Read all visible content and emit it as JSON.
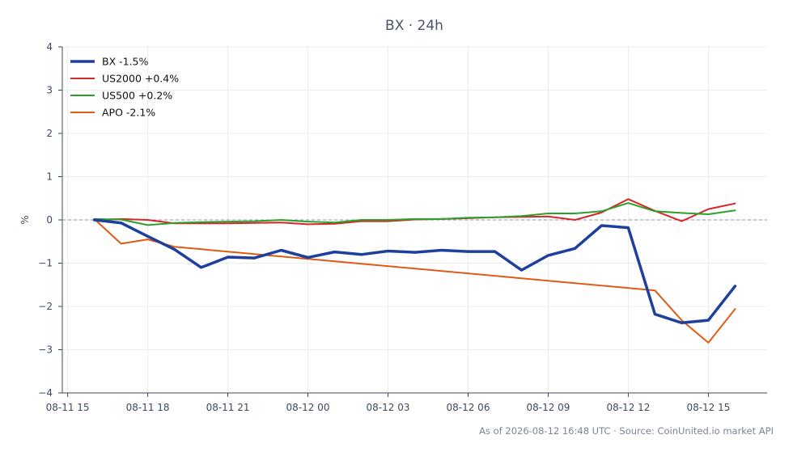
{
  "chart_data": {
    "type": "line",
    "title": "BX · 24h",
    "xlabel": "",
    "ylabel": "%",
    "x_ticks": [
      "08-11 15",
      "08-11 18",
      "08-11 21",
      "08-12 00",
      "08-12 03",
      "08-12 06",
      "08-12 09",
      "08-12 12",
      "08-12 15"
    ],
    "y_ticks": [
      4,
      3,
      2,
      1,
      0,
      -1,
      -2,
      -3,
      -4
    ],
    "ylim": [
      -4,
      4
    ],
    "grid": true,
    "legend_position": "top-left",
    "zero_line": true,
    "series": [
      {
        "name": "BX -1.5%",
        "color": "#1f3f9e",
        "width": "thick",
        "x": [
          16,
          17,
          18,
          19,
          20,
          21,
          22,
          23,
          24,
          25,
          26,
          27,
          28,
          29,
          30,
          31,
          32,
          33,
          34,
          35,
          36,
          37,
          38,
          39,
          40
        ],
        "values": [
          0.0,
          -0.07,
          -0.38,
          -0.68,
          -1.1,
          -0.86,
          -0.88,
          -0.7,
          -0.87,
          -0.74,
          -0.8,
          -0.72,
          -0.75,
          -0.7,
          -0.73,
          -0.73,
          -1.16,
          -0.82,
          -0.66,
          -0.13,
          -0.18,
          -2.18,
          -2.38,
          -2.32,
          -1.53
        ]
      },
      {
        "name": "US2000 +0.4%",
        "color": "#d62728",
        "width": "normal",
        "x": [
          16,
          17,
          18,
          19,
          20,
          21,
          22,
          23,
          24,
          25,
          26,
          27,
          28,
          29,
          30,
          31,
          32,
          33,
          34,
          35,
          36,
          37,
          38,
          39,
          40
        ],
        "values": [
          0.0,
          0.02,
          0.0,
          -0.08,
          -0.08,
          -0.08,
          -0.07,
          -0.06,
          -0.1,
          -0.09,
          -0.03,
          -0.03,
          0.01,
          0.02,
          0.04,
          0.06,
          0.07,
          0.08,
          0.0,
          0.17,
          0.48,
          0.21,
          -0.03,
          0.25,
          0.38
        ]
      },
      {
        "name": "US500 +0.2%",
        "color": "#2ca02c",
        "width": "normal",
        "x": [
          16,
          17,
          18,
          19,
          20,
          21,
          22,
          23,
          24,
          25,
          26,
          27,
          28,
          29,
          30,
          31,
          32,
          33,
          34,
          35,
          36,
          37,
          38,
          39,
          40
        ],
        "values": [
          0.02,
          0.01,
          -0.12,
          -0.07,
          -0.05,
          -0.04,
          -0.03,
          0.0,
          -0.04,
          -0.06,
          0.0,
          0.0,
          0.02,
          0.02,
          0.05,
          0.06,
          0.09,
          0.15,
          0.15,
          0.2,
          0.39,
          0.2,
          0.16,
          0.13,
          0.22
        ]
      },
      {
        "name": "APO -2.1%",
        "color": "#e05a14",
        "width": "normal",
        "x": [
          16,
          17,
          18,
          19,
          37,
          38,
          39,
          40
        ],
        "values": [
          0.02,
          -0.55,
          -0.45,
          -0.62,
          -1.63,
          -2.32,
          -2.84,
          -2.06
        ]
      }
    ]
  },
  "footer": "As of 2026-08-12 16:48 UTC · Source: CoinUnited.io market API"
}
